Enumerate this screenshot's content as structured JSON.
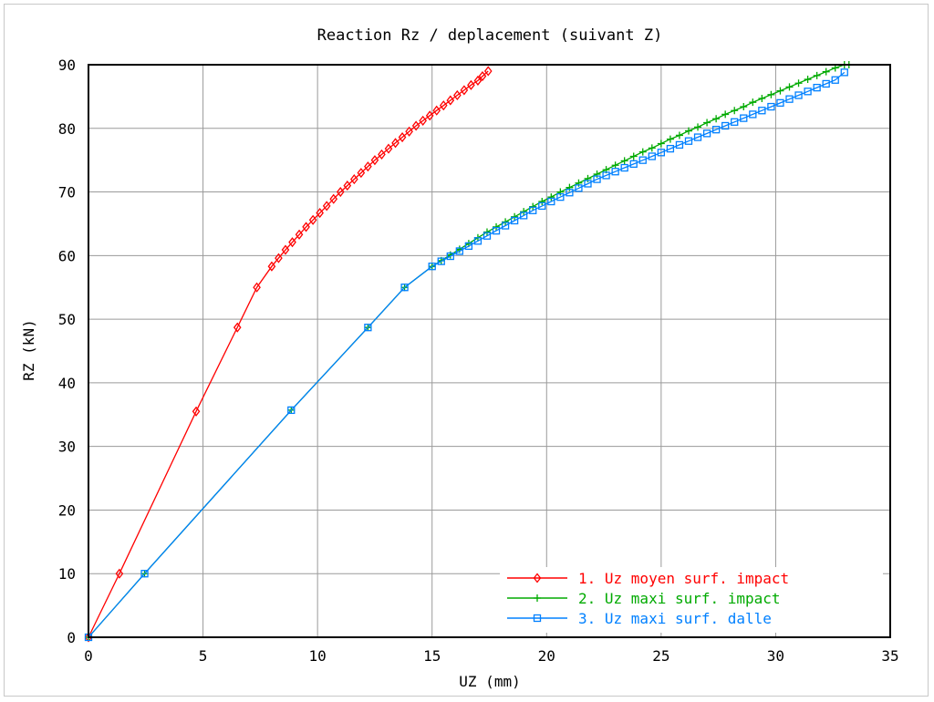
{
  "chart_data": {
    "type": "line",
    "title": "Reaction Rz / deplacement (suivant Z)",
    "xlabel": "UZ (mm)",
    "ylabel": "RZ (kN)",
    "xlim": [
      0,
      35
    ],
    "ylim": [
      0,
      90
    ],
    "xticks": [
      0,
      5,
      10,
      15,
      20,
      25,
      30,
      35
    ],
    "yticks": [
      0,
      10,
      20,
      30,
      40,
      50,
      60,
      70,
      80,
      90
    ],
    "grid": true,
    "legend_position": "bottom-right",
    "series": [
      {
        "name": "1. Uz moyen surf. impact",
        "color": "#ff0000",
        "marker": "diamond",
        "x": [
          0,
          1.35,
          4.7,
          6.5,
          7.35,
          8.0,
          8.3,
          8.6,
          8.9,
          9.2,
          9.5,
          9.8,
          10.1,
          10.4,
          10.7,
          11.0,
          11.3,
          11.6,
          11.9,
          12.2,
          12.5,
          12.8,
          13.1,
          13.4,
          13.7,
          14.0,
          14.3,
          14.6,
          14.9,
          15.2,
          15.5,
          15.8,
          16.1,
          16.4,
          16.7,
          17.0,
          17.2,
          17.45
        ],
        "y": [
          0,
          10,
          35.5,
          48.7,
          55.0,
          58.3,
          59.6,
          60.9,
          62.1,
          63.3,
          64.5,
          65.6,
          66.7,
          67.8,
          68.9,
          70.0,
          71.0,
          72.0,
          73.0,
          74.0,
          75.0,
          75.9,
          76.8,
          77.7,
          78.6,
          79.5,
          80.4,
          81.2,
          82.0,
          82.8,
          83.6,
          84.4,
          85.2,
          86.0,
          86.8,
          87.5,
          88.2,
          89.0
        ]
      },
      {
        "name": "2. Uz maxi  surf. impact",
        "color": "#00aa00",
        "marker": "plus",
        "x": [
          0,
          2.45,
          8.85,
          12.2,
          13.8,
          15.0,
          15.4,
          15.8,
          16.2,
          16.6,
          17.0,
          17.4,
          17.8,
          18.2,
          18.6,
          19.0,
          19.4,
          19.8,
          20.2,
          20.6,
          21.0,
          21.4,
          21.8,
          22.2,
          22.6,
          23.0,
          23.4,
          23.8,
          24.2,
          24.6,
          25.0,
          25.4,
          25.8,
          26.2,
          26.6,
          27.0,
          27.4,
          27.8,
          28.2,
          28.6,
          29.0,
          29.4,
          29.8,
          30.2,
          30.6,
          31.0,
          31.4,
          31.8,
          32.2,
          32.6,
          33.0,
          33.2
        ],
        "y": [
          0,
          10,
          35.7,
          48.7,
          55.0,
          58.3,
          59.2,
          60.1,
          61.0,
          61.9,
          62.8,
          63.7,
          64.5,
          65.3,
          66.1,
          66.9,
          67.7,
          68.5,
          69.2,
          70.0,
          70.7,
          71.4,
          72.1,
          72.8,
          73.5,
          74.2,
          74.9,
          75.6,
          76.3,
          76.9,
          77.6,
          78.3,
          78.9,
          79.6,
          80.2,
          80.9,
          81.5,
          82.2,
          82.8,
          83.4,
          84.1,
          84.7,
          85.3,
          85.9,
          86.5,
          87.1,
          87.7,
          88.3,
          88.9,
          89.5,
          90.0,
          90.0
        ]
      },
      {
        "name": "3. Uz maxi  surf. dalle",
        "color": "#0080ff",
        "marker": "square",
        "x": [
          0,
          2.45,
          8.85,
          12.2,
          13.8,
          15.0,
          15.4,
          15.8,
          16.2,
          16.6,
          17.0,
          17.4,
          17.8,
          18.2,
          18.6,
          19.0,
          19.4,
          19.8,
          20.2,
          20.6,
          21.0,
          21.4,
          21.8,
          22.2,
          22.6,
          23.0,
          23.4,
          23.8,
          24.2,
          24.6,
          25.0,
          25.4,
          25.8,
          26.2,
          26.6,
          27.0,
          27.4,
          27.8,
          28.2,
          28.6,
          29.0,
          29.4,
          29.8,
          30.2,
          30.6,
          31.0,
          31.4,
          31.8,
          32.2,
          32.6,
          33.0
        ],
        "y": [
          0,
          10,
          35.7,
          48.7,
          55.0,
          58.3,
          59.1,
          59.9,
          60.7,
          61.5,
          62.3,
          63.1,
          63.9,
          64.7,
          65.5,
          66.3,
          67.1,
          67.8,
          68.5,
          69.2,
          69.9,
          70.6,
          71.3,
          72.0,
          72.6,
          73.2,
          73.8,
          74.4,
          75.0,
          75.6,
          76.2,
          76.8,
          77.4,
          78.0,
          78.6,
          79.2,
          79.8,
          80.4,
          81.0,
          81.6,
          82.2,
          82.8,
          83.4,
          84.0,
          84.6,
          85.2,
          85.8,
          86.4,
          87.0,
          87.6,
          88.8
        ]
      }
    ]
  }
}
